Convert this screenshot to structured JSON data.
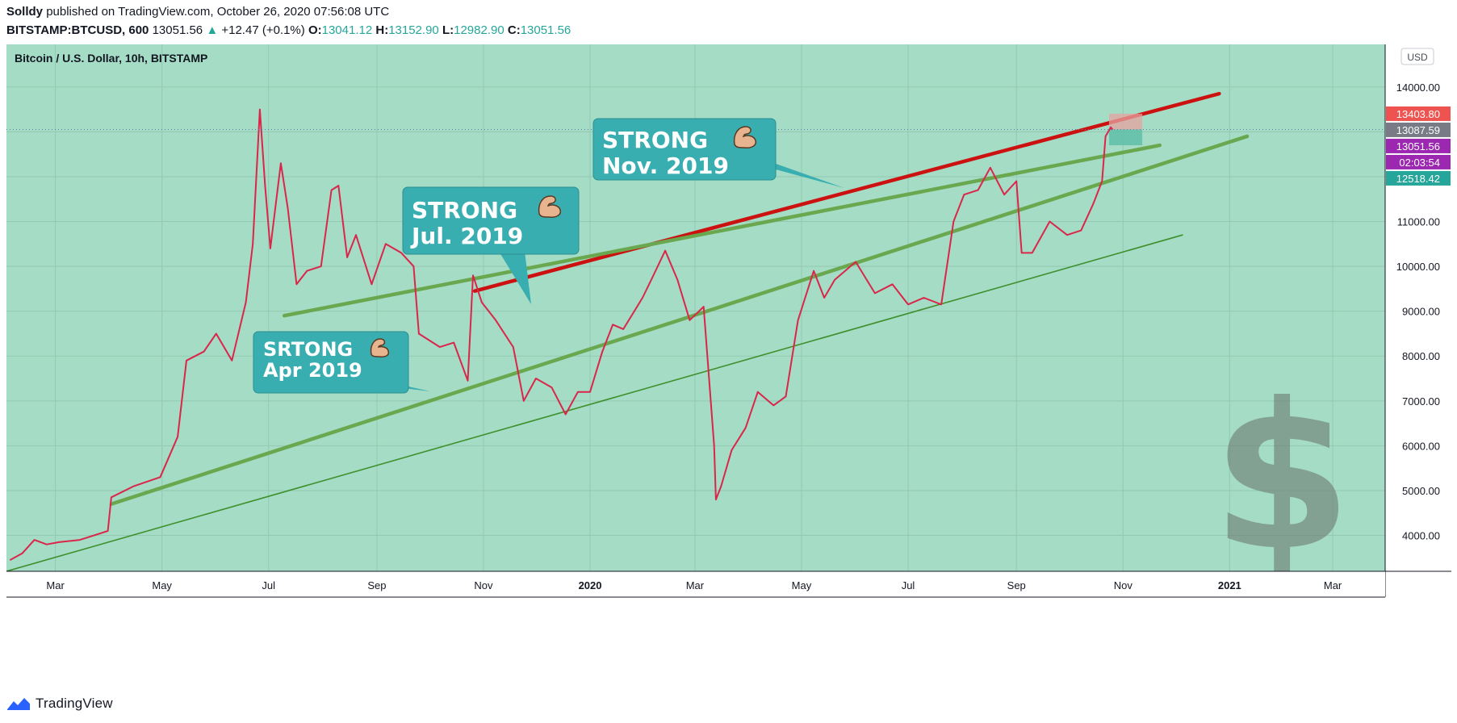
{
  "header": {
    "author": "Solldy",
    "published": "published on TradingView.com, October 26, 2020 07:56:08 UTC"
  },
  "quote": {
    "symbol": "BITSTAMP:BTCUSD, 600",
    "last": "13051.56",
    "change": "+12.47 (+0.1%)",
    "o_label": "O:",
    "o": "13041.12",
    "h_label": "H:",
    "h": "13152.90",
    "l_label": "L:",
    "l": "12982.90",
    "c_label": "C:",
    "c": "13051.56"
  },
  "chart_title": "Bitcoin / U.S. Dollar, 10h, BITSTAMP",
  "currency": "USD",
  "footer": {
    "brand": "TradingView"
  },
  "colors": {
    "background": "#a5dcc5",
    "candle": "#d9264a",
    "red_trend": "#cc1111",
    "green_trend": "#6aa84f",
    "callout": "#38aeb0"
  },
  "callouts": [
    {
      "text1": "STRONG",
      "text2": "Nov. 2019",
      "icon": "flexed-biceps-icon"
    },
    {
      "text1": "STRONG",
      "text2": "Jul. 2019",
      "icon": "flexed-biceps-icon"
    },
    {
      "text1": "SRTONG",
      "text2": "Apr 2019",
      "icon": "flexed-biceps-icon"
    }
  ],
  "price_labels": [
    {
      "text": "13403.80",
      "value": 13403.8,
      "color": "#ef5350"
    },
    {
      "text": "13087.59",
      "value": 13087.59,
      "color": "#787b86"
    },
    {
      "text": "13051.56",
      "value": 13051.56,
      "color": "#9c27b0"
    },
    {
      "text": "02:03:54",
      "value": 12730,
      "color": "#9c27b0"
    },
    {
      "text": "12518.42",
      "value": 12518.42,
      "color": "#26a69a"
    }
  ],
  "chart_data": {
    "type": "line",
    "title": "Bitcoin / U.S. Dollar, 10h, BITSTAMP",
    "x_ticks": [
      "Mar",
      "May",
      "Jul",
      "Sep",
      "Nov",
      "2020",
      "Mar",
      "May",
      "Jul",
      "Sep",
      "Nov",
      "2021",
      "Mar"
    ],
    "x_tick_dates": [
      "2019-03-01",
      "2019-05-01",
      "2019-07-01",
      "2019-09-01",
      "2019-11-01",
      "2020-01-01",
      "2020-03-01",
      "2020-05-01",
      "2020-07-01",
      "2020-09-01",
      "2020-11-01",
      "2021-01-01",
      "2021-03-01"
    ],
    "y_ticks": [
      "14000.00",
      "13000.00",
      "12000.00",
      "11000.00",
      "10000.00",
      "9000.00",
      "8000.00",
      "7000.00",
      "6000.00",
      "5000.00",
      "4000.00"
    ],
    "y_tick_values": [
      14000,
      13000,
      12000,
      11000,
      10000,
      9000,
      8000,
      7000,
      6000,
      5000,
      4000
    ],
    "xlim": [
      "2019-02-01",
      "2021-03-31"
    ],
    "ylim": [
      3200,
      14950
    ],
    "grid": true,
    "series": [
      {
        "values": [
          [
            "2019-02-03",
            3450
          ],
          [
            "2019-02-10",
            3600
          ],
          [
            "2019-02-17",
            3900
          ],
          [
            "2019-02-24",
            3800
          ],
          [
            "2019-03-03",
            3850
          ],
          [
            "2019-03-15",
            3900
          ],
          [
            "2019-03-31",
            4100
          ],
          [
            "2019-04-02",
            4850
          ],
          [
            "2019-04-15",
            5100
          ],
          [
            "2019-04-30",
            5300
          ],
          [
            "2019-05-10",
            6200
          ],
          [
            "2019-05-15",
            7900
          ],
          [
            "2019-05-25",
            8100
          ],
          [
            "2019-06-01",
            8500
          ],
          [
            "2019-06-10",
            7900
          ],
          [
            "2019-06-18",
            9200
          ],
          [
            "2019-06-22",
            10500
          ],
          [
            "2019-06-26",
            13500
          ],
          [
            "2019-06-29",
            11800
          ],
          [
            "2019-07-02",
            10400
          ],
          [
            "2019-07-08",
            12300
          ],
          [
            "2019-07-12",
            11300
          ],
          [
            "2019-07-17",
            9600
          ],
          [
            "2019-07-23",
            9900
          ],
          [
            "2019-07-31",
            10000
          ],
          [
            "2019-08-06",
            11700
          ],
          [
            "2019-08-10",
            11800
          ],
          [
            "2019-08-15",
            10200
          ],
          [
            "2019-08-20",
            10700
          ],
          [
            "2019-08-29",
            9600
          ],
          [
            "2019-09-06",
            10500
          ],
          [
            "2019-09-15",
            10300
          ],
          [
            "2019-09-22",
            10000
          ],
          [
            "2019-09-25",
            8500
          ],
          [
            "2019-10-07",
            8200
          ],
          [
            "2019-10-15",
            8300
          ],
          [
            "2019-10-23",
            7450
          ],
          [
            "2019-10-26",
            9800
          ],
          [
            "2019-10-31",
            9200
          ],
          [
            "2019-11-08",
            8800
          ],
          [
            "2019-11-18",
            8200
          ],
          [
            "2019-11-24",
            7000
          ],
          [
            "2019-12-01",
            7500
          ],
          [
            "2019-12-10",
            7300
          ],
          [
            "2019-12-18",
            6700
          ],
          [
            "2019-12-25",
            7200
          ],
          [
            "2020-01-01",
            7200
          ],
          [
            "2020-01-08",
            8100
          ],
          [
            "2020-01-14",
            8700
          ],
          [
            "2020-01-20",
            8600
          ],
          [
            "2020-01-31",
            9300
          ],
          [
            "2020-02-05",
            9700
          ],
          [
            "2020-02-13",
            10350
          ],
          [
            "2020-02-20",
            9700
          ],
          [
            "2020-02-27",
            8800
          ],
          [
            "2020-03-06",
            9100
          ],
          [
            "2020-03-12",
            6000
          ],
          [
            "2020-03-13",
            4800
          ],
          [
            "2020-03-16",
            5100
          ],
          [
            "2020-03-22",
            5900
          ],
          [
            "2020-03-30",
            6400
          ],
          [
            "2020-04-06",
            7200
          ],
          [
            "2020-04-15",
            6900
          ],
          [
            "2020-04-22",
            7100
          ],
          [
            "2020-04-29",
            8800
          ],
          [
            "2020-05-08",
            9900
          ],
          [
            "2020-05-14",
            9300
          ],
          [
            "2020-05-20",
            9700
          ],
          [
            "2020-06-01",
            10100
          ],
          [
            "2020-06-12",
            9400
          ],
          [
            "2020-06-22",
            9600
          ],
          [
            "2020-07-01",
            9150
          ],
          [
            "2020-07-10",
            9300
          ],
          [
            "2020-07-20",
            9150
          ],
          [
            "2020-07-27",
            11000
          ],
          [
            "2020-08-02",
            11600
          ],
          [
            "2020-08-10",
            11700
          ],
          [
            "2020-08-17",
            12200
          ],
          [
            "2020-08-25",
            11600
          ],
          [
            "2020-09-01",
            11900
          ],
          [
            "2020-09-04",
            10300
          ],
          [
            "2020-09-10",
            10300
          ],
          [
            "2020-09-20",
            11000
          ],
          [
            "2020-09-30",
            10700
          ],
          [
            "2020-10-08",
            10800
          ],
          [
            "2020-10-15",
            11400
          ],
          [
            "2020-10-20",
            11900
          ],
          [
            "2020-10-22",
            12900
          ],
          [
            "2020-10-25",
            13100
          ],
          [
            "2020-10-26",
            13051.56
          ]
        ]
      }
    ],
    "trendlines": [
      {
        "color": "red",
        "from": [
          "2019-10-27",
          9450
        ],
        "to": [
          "2020-12-26",
          13850
        ]
      },
      {
        "color": "green",
        "from": [
          "2019-07-10",
          8900
        ],
        "to": [
          "2020-11-22",
          12700
        ]
      },
      {
        "color": "green",
        "from": [
          "2019-04-02",
          4700
        ],
        "to": [
          "2021-01-11",
          12900
        ]
      },
      {
        "color": "green-thin",
        "from": [
          "2019-02-01",
          3200
        ],
        "to": [
          "2020-12-05",
          10700
        ]
      }
    ],
    "position_box": {
      "start": "2020-10-24",
      "end": "2020-11-12",
      "stop": 13403.8,
      "entry": 13051.56,
      "target": 12700
    }
  }
}
